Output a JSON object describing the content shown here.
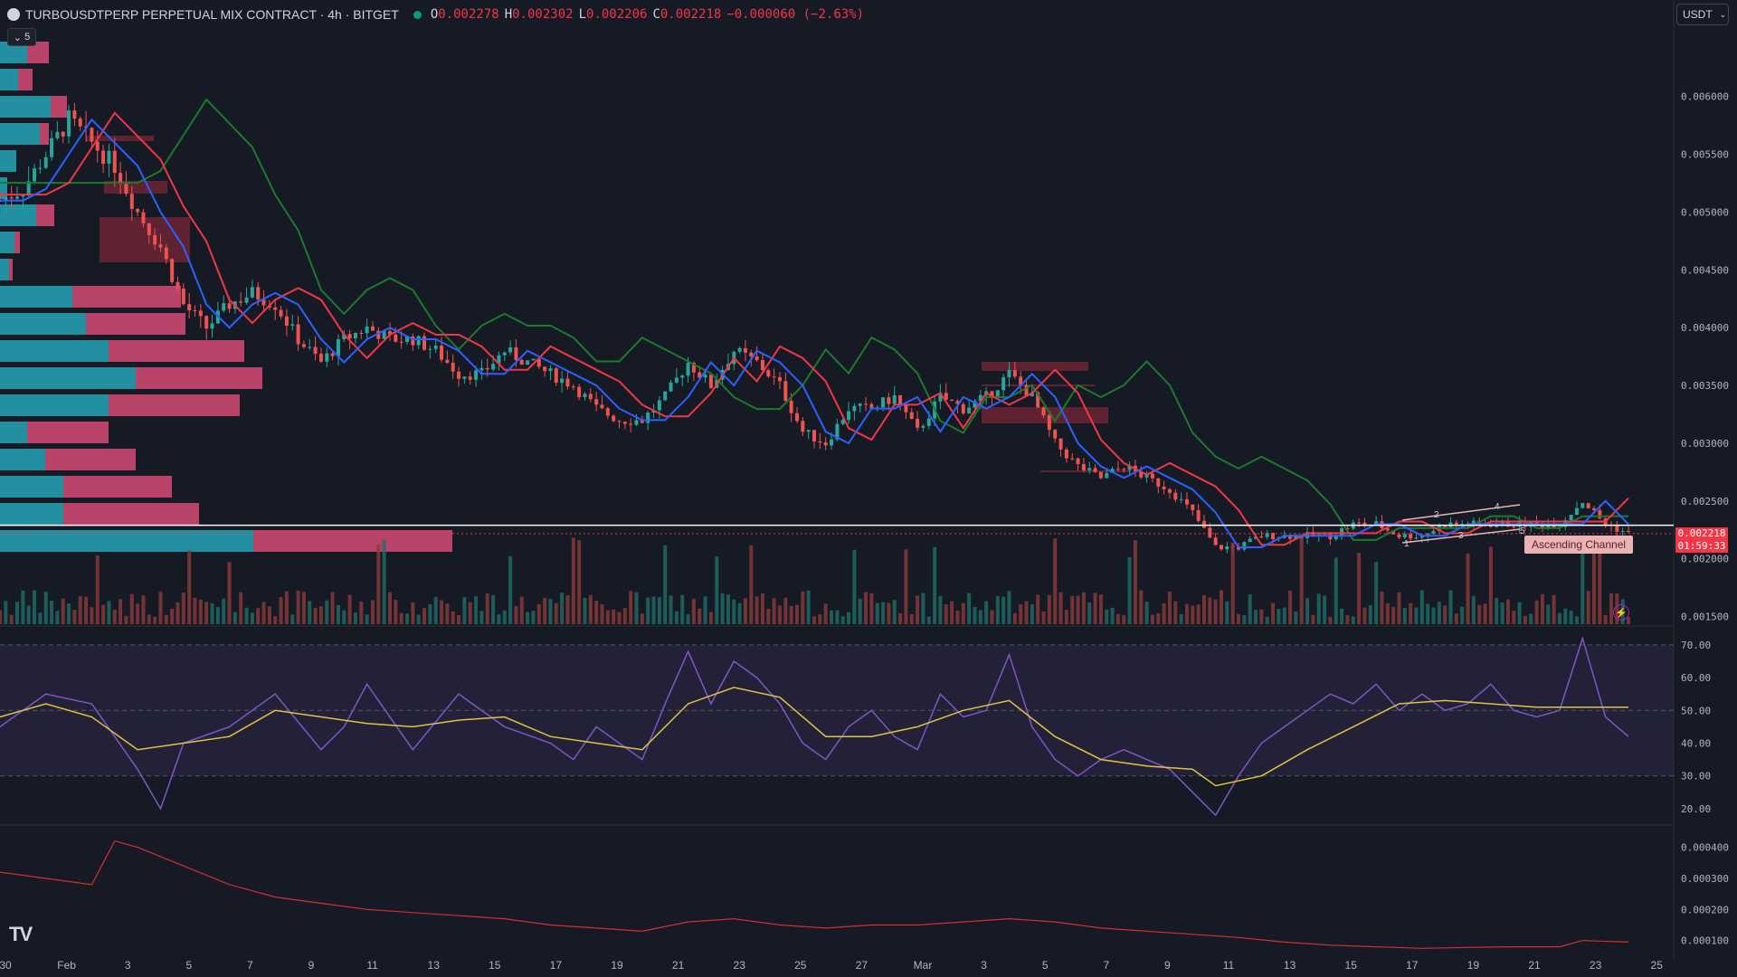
{
  "header": {
    "symbol": "TURBOUSDTPERP PERPETUAL MIX CONTRACT · 4h · BITGET",
    "ohlc": [
      {
        "label": "O",
        "value": "0.002278"
      },
      {
        "label": "H",
        "value": "0.002302"
      },
      {
        "label": "L",
        "value": "0.002206"
      },
      {
        "label": "C",
        "value": "0.002218"
      },
      {
        "label": "",
        "value": "−0.000060 (−2.63%)"
      }
    ],
    "collapse_label": "5"
  },
  "currency": "USDT",
  "last_price": "0.002218",
  "countdown": "01:59:33",
  "annotation": "Ascending Channel",
  "channel_marks": [
    "1",
    "2",
    "3",
    "4",
    "5"
  ],
  "colors": {
    "up": "#26a69a",
    "down": "#ef5350",
    "ema_fast": "#2962ff",
    "ema_mid": "#f23645",
    "ema_slow": "#1b7a2b",
    "rsi": "#7e57c2",
    "rsi_ma": "#e0c341",
    "bg": "#161a25"
  },
  "chart_data": [
    {
      "type": "candlestick",
      "panel": "price",
      "y_ticks": [
        "0.006000",
        "0.005500",
        "0.005000",
        "0.004500",
        "0.004000",
        "0.003500",
        "0.003000",
        "0.002500",
        "0.002000",
        "0.001500"
      ],
      "ylim": [
        0.00145,
        0.0066
      ],
      "x_ticks": [
        "30",
        "Feb",
        "3",
        "5",
        "7",
        "9",
        "11",
        "13",
        "15",
        "17",
        "19",
        "21",
        "23",
        "25",
        "27",
        "Mar",
        "3",
        "5",
        "7",
        "9",
        "11",
        "13",
        "15",
        "17",
        "19",
        "21",
        "23",
        "25"
      ],
      "horizontal_line": 0.00229,
      "close_path": [
        [
          0,
          0.0051
        ],
        [
          2,
          0.0052
        ],
        [
          4,
          0.0055
        ],
        [
          6,
          0.0058
        ],
        [
          8,
          0.0056
        ],
        [
          10,
          0.0054
        ],
        [
          12,
          0.005
        ],
        [
          14,
          0.0047
        ],
        [
          16,
          0.0042
        ],
        [
          18,
          0.004
        ],
        [
          20,
          0.0042
        ],
        [
          22,
          0.0043
        ],
        [
          24,
          0.0042
        ],
        [
          26,
          0.0039
        ],
        [
          28,
          0.0037
        ],
        [
          30,
          0.0039
        ],
        [
          32,
          0.004
        ],
        [
          34,
          0.0039
        ],
        [
          36,
          0.0039
        ],
        [
          38,
          0.0038
        ],
        [
          40,
          0.0036
        ],
        [
          42,
          0.0036
        ],
        [
          44,
          0.0038
        ],
        [
          46,
          0.0037
        ],
        [
          48,
          0.0036
        ],
        [
          50,
          0.0035
        ],
        [
          52,
          0.0033
        ],
        [
          54,
          0.0032
        ],
        [
          56,
          0.0032
        ],
        [
          58,
          0.0034
        ],
        [
          60,
          0.0037
        ],
        [
          62,
          0.0035
        ],
        [
          64,
          0.0038
        ],
        [
          66,
          0.0037
        ],
        [
          68,
          0.0035
        ],
        [
          70,
          0.0031
        ],
        [
          72,
          0.003
        ],
        [
          74,
          0.0033
        ],
        [
          76,
          0.0033
        ],
        [
          78,
          0.0034
        ],
        [
          80,
          0.0031
        ],
        [
          82,
          0.0034
        ],
        [
          84,
          0.0033
        ],
        [
          86,
          0.0034
        ],
        [
          88,
          0.0036
        ],
        [
          90,
          0.0034
        ],
        [
          92,
          0.003
        ],
        [
          94,
          0.0028
        ],
        [
          96,
          0.0027
        ],
        [
          98,
          0.0028
        ],
        [
          100,
          0.0027
        ],
        [
          102,
          0.0026
        ],
        [
          104,
          0.0024
        ],
        [
          106,
          0.0021
        ],
        [
          108,
          0.0021
        ],
        [
          110,
          0.0022
        ],
        [
          112,
          0.0022
        ],
        [
          114,
          0.0022
        ],
        [
          116,
          0.0022
        ],
        [
          118,
          0.0023
        ],
        [
          120,
          0.0023
        ],
        [
          122,
          0.0022
        ],
        [
          124,
          0.0022
        ],
        [
          126,
          0.0023
        ],
        [
          128,
          0.0023
        ],
        [
          130,
          0.0023
        ],
        [
          132,
          0.0023
        ],
        [
          134,
          0.0023
        ],
        [
          136,
          0.0023
        ],
        [
          138,
          0.0025
        ],
        [
          140,
          0.0023
        ],
        [
          142,
          0.00222
        ]
      ]
    },
    {
      "type": "line",
      "panel": "rsi",
      "y_ticks": [
        "70.00",
        "60.00",
        "50.00",
        "40.00",
        "30.00",
        "20.00"
      ],
      "ylim": [
        15,
        73
      ],
      "bands": [
        30,
        70
      ],
      "series": [
        {
          "values": [
            [
              0,
              45
            ],
            [
              4,
              55
            ],
            [
              8,
              52
            ],
            [
              12,
              32
            ],
            [
              14,
              20
            ],
            [
              16,
              40
            ],
            [
              20,
              45
            ],
            [
              24,
              55
            ],
            [
              28,
              38
            ],
            [
              30,
              45
            ],
            [
              32,
              58
            ],
            [
              36,
              38
            ],
            [
              40,
              55
            ],
            [
              44,
              45
            ],
            [
              48,
              40
            ],
            [
              50,
              35
            ],
            [
              52,
              45
            ],
            [
              54,
              40
            ],
            [
              56,
              35
            ],
            [
              58,
              52
            ],
            [
              60,
              68
            ],
            [
              62,
              52
            ],
            [
              64,
              65
            ],
            [
              66,
              60
            ],
            [
              68,
              52
            ],
            [
              70,
              40
            ],
            [
              72,
              35
            ],
            [
              74,
              45
            ],
            [
              76,
              50
            ],
            [
              78,
              42
            ],
            [
              80,
              38
            ],
            [
              82,
              55
            ],
            [
              84,
              48
            ],
            [
              86,
              50
            ],
            [
              88,
              67
            ],
            [
              90,
              45
            ],
            [
              92,
              35
            ],
            [
              94,
              30
            ],
            [
              96,
              35
            ],
            [
              98,
              38
            ],
            [
              100,
              35
            ],
            [
              102,
              32
            ],
            [
              104,
              25
            ],
            [
              106,
              18
            ],
            [
              108,
              30
            ],
            [
              110,
              40
            ],
            [
              112,
              45
            ],
            [
              114,
              50
            ],
            [
              116,
              55
            ],
            [
              118,
              52
            ],
            [
              120,
              58
            ],
            [
              122,
              50
            ],
            [
              124,
              55
            ],
            [
              126,
              50
            ],
            [
              128,
              52
            ],
            [
              130,
              58
            ],
            [
              132,
              50
            ],
            [
              134,
              48
            ],
            [
              136,
              50
            ],
            [
              138,
              72
            ],
            [
              140,
              48
            ],
            [
              142,
              42
            ]
          ]
        },
        {
          "values": [
            [
              0,
              48
            ],
            [
              4,
              52
            ],
            [
              8,
              48
            ],
            [
              12,
              38
            ],
            [
              16,
              40
            ],
            [
              20,
              42
            ],
            [
              24,
              50
            ],
            [
              28,
              48
            ],
            [
              32,
              46
            ],
            [
              36,
              45
            ],
            [
              40,
              47
            ],
            [
              44,
              48
            ],
            [
              48,
              42
            ],
            [
              52,
              40
            ],
            [
              56,
              38
            ],
            [
              60,
              52
            ],
            [
              64,
              57
            ],
            [
              68,
              54
            ],
            [
              72,
              42
            ],
            [
              76,
              42
            ],
            [
              80,
              45
            ],
            [
              84,
              50
            ],
            [
              88,
              53
            ],
            [
              92,
              42
            ],
            [
              96,
              35
            ],
            [
              100,
              33
            ],
            [
              104,
              32
            ],
            [
              106,
              27
            ],
            [
              110,
              30
            ],
            [
              114,
              38
            ],
            [
              118,
              45
            ],
            [
              122,
              52
            ],
            [
              126,
              53
            ],
            [
              130,
              52
            ],
            [
              134,
              51
            ],
            [
              138,
              51
            ],
            [
              142,
              51
            ]
          ]
        }
      ]
    },
    {
      "type": "line",
      "panel": "indicator",
      "y_ticks": [
        "0.000400",
        "0.000300",
        "0.000200",
        "0.000100"
      ],
      "ylim": [
        7e-05,
        0.00046
      ],
      "series": [
        {
          "values": [
            [
              0,
              0.00032
            ],
            [
              4,
              0.0003
            ],
            [
              8,
              0.00028
            ],
            [
              10,
              0.00042
            ],
            [
              12,
              0.0004
            ],
            [
              16,
              0.00034
            ],
            [
              20,
              0.00028
            ],
            [
              24,
              0.00024
            ],
            [
              28,
              0.00022
            ],
            [
              32,
              0.0002
            ],
            [
              36,
              0.00019
            ],
            [
              40,
              0.00018
            ],
            [
              44,
              0.00017
            ],
            [
              48,
              0.00015
            ],
            [
              52,
              0.00014
            ],
            [
              56,
              0.00013
            ],
            [
              60,
              0.00016
            ],
            [
              64,
              0.00017
            ],
            [
              68,
              0.00015
            ],
            [
              72,
              0.00014
            ],
            [
              76,
              0.00015
            ],
            [
              80,
              0.00015
            ],
            [
              84,
              0.00016
            ],
            [
              88,
              0.00017
            ],
            [
              92,
              0.00016
            ],
            [
              96,
              0.00014
            ],
            [
              100,
              0.00013
            ],
            [
              104,
              0.00012
            ],
            [
              108,
              0.00011
            ],
            [
              112,
              9.5e-05
            ],
            [
              116,
              8.5e-05
            ],
            [
              120,
              8e-05
            ],
            [
              124,
              7.5e-05
            ],
            [
              128,
              7.8e-05
            ],
            [
              132,
              8e-05
            ],
            [
              136,
              8e-05
            ],
            [
              138,
              0.0001
            ],
            [
              142,
              9.5e-05
            ]
          ]
        }
      ]
    }
  ]
}
